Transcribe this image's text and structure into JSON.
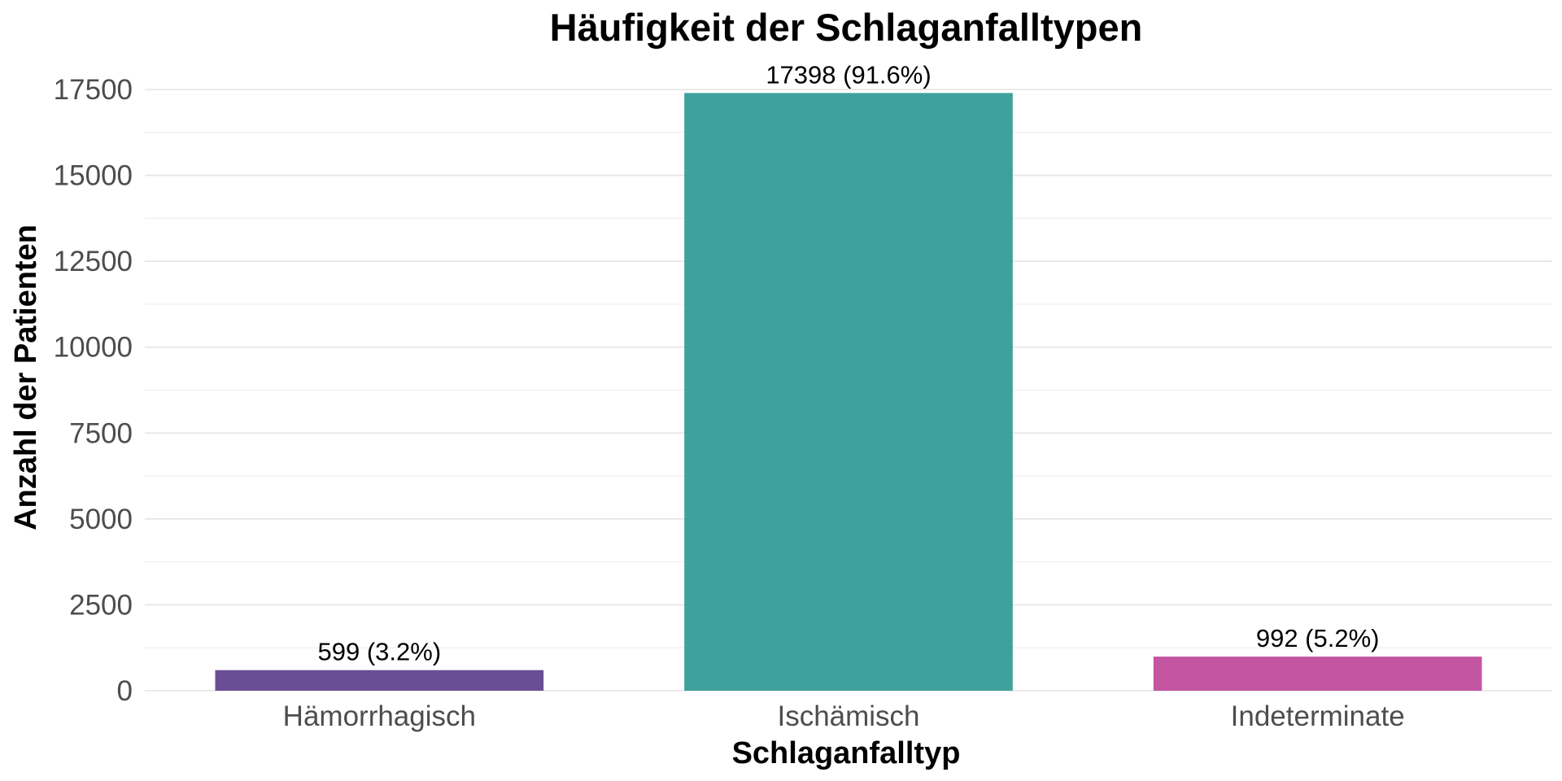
{
  "chart_data": {
    "type": "bar",
    "title": "Häufigkeit der Schlaganfalltypen",
    "xlabel": "Schlaganfalltyp",
    "ylabel": "Anzahl der Patienten",
    "categories": [
      "Hämorrhagisch",
      "Ischämisch",
      "Indeterminate"
    ],
    "values": [
      599,
      17398,
      992
    ],
    "data_labels": [
      "599 (3.2%)",
      "17398 (91.6%)",
      "992 (5.2%)"
    ],
    "colors": [
      "#5c3f8c",
      "#2f9996",
      "#bf4799"
    ],
    "ylim": [
      0,
      17500
    ],
    "yticks": [
      0,
      2500,
      5000,
      7500,
      10000,
      12500,
      15000,
      17500
    ],
    "ytick_labels": [
      "0",
      "2500",
      "5000",
      "7500",
      "10000",
      "12500",
      "15000",
      "17500"
    ],
    "grid": true,
    "legend": "none"
  }
}
